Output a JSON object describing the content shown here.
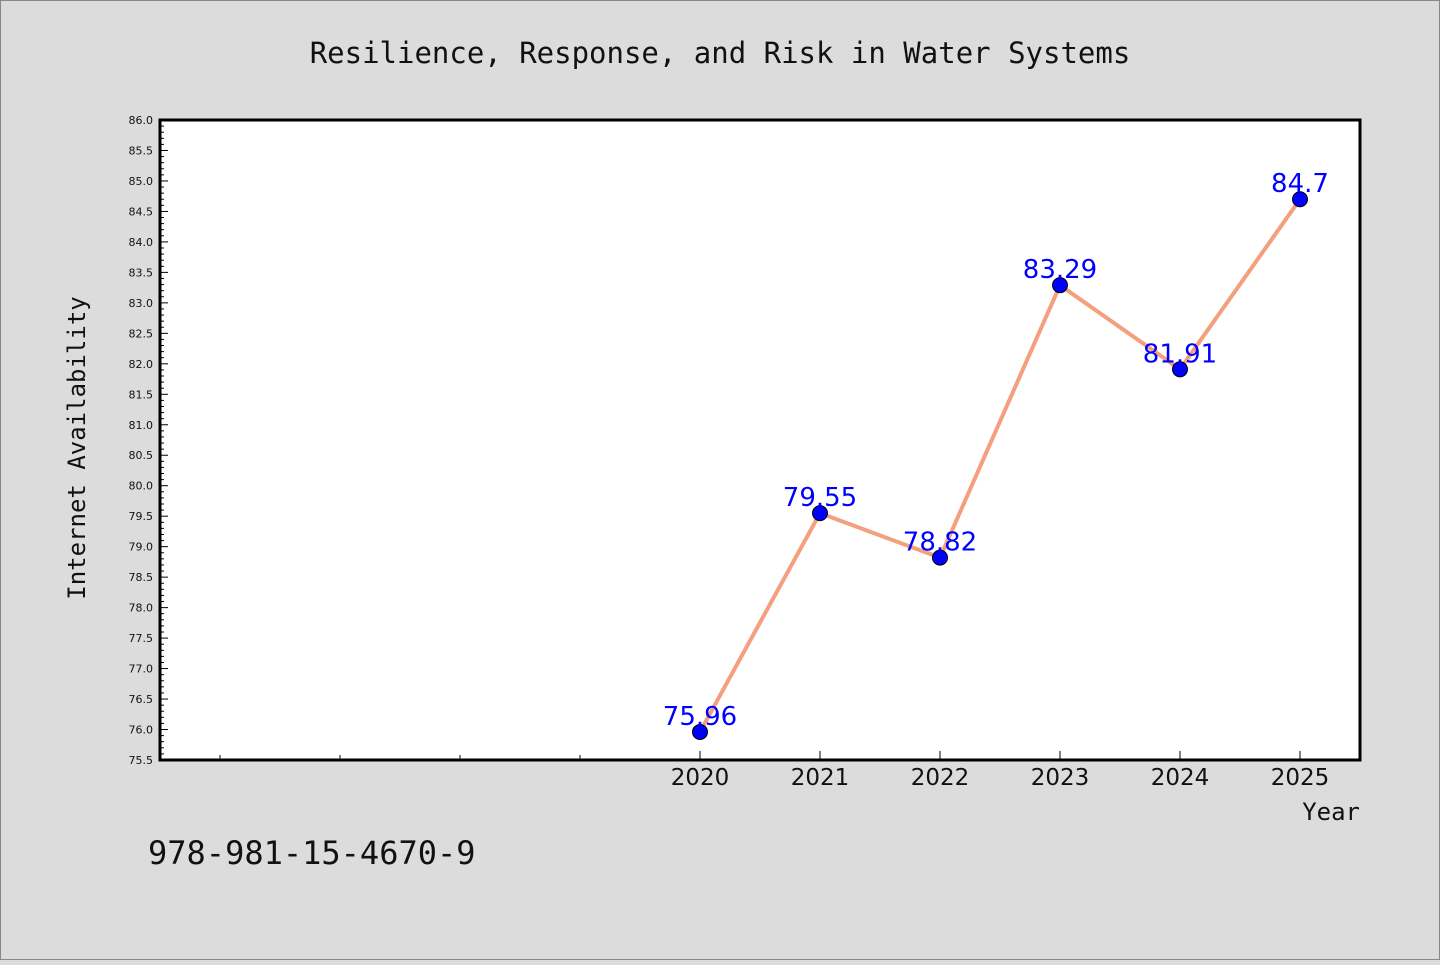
{
  "chart_data": {
    "type": "line",
    "title": "Resilience, Response, and Risk in Water Systems",
    "xlabel": "Year",
    "ylabel": "Internet Availability",
    "x": [
      2020,
      2021,
      2022,
      2023,
      2024,
      2025
    ],
    "x_tick_labels": [
      "2020",
      "2021",
      "2022",
      "2023",
      "2024",
      "2025"
    ],
    "xlim": [
      2015.5,
      2025.5
    ],
    "ylim": [
      75.5,
      86.0
    ],
    "y_major_step": 0.5,
    "series": [
      {
        "values": [
          75.96,
          79.55,
          78.82,
          83.29,
          81.91,
          84.7
        ],
        "data_labels": [
          "75.96",
          "79.55",
          "78.82",
          "83.29",
          "81.91",
          "84.7"
        ],
        "line_color": "#f4a07f",
        "marker_color": "#0000ff"
      }
    ],
    "grid": false,
    "legend": "none",
    "background_color": "#dcdcdc",
    "plot_background_color": "#ffffff",
    "data_label_color": "#0000ff"
  },
  "annotation": {
    "text": "978-981-15-4670-9"
  }
}
